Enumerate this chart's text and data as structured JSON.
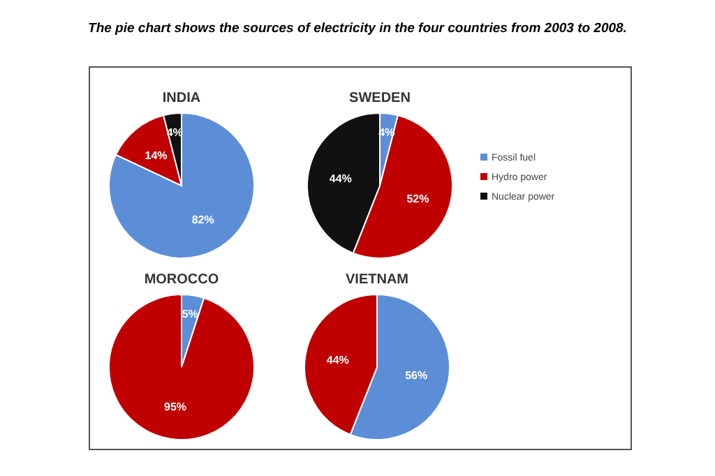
{
  "chart_data": [
    {
      "type": "other",
      "title": "The pie chart shows the sources of electricity in the four countries from 2003 to 2008."
    },
    {
      "type": "pie",
      "title": "INDIA",
      "categories": [
        null,
        null,
        null
      ],
      "values": [
        82,
        14,
        4
      ],
      "value_labels": [
        "82%",
        "14%",
        "4%"
      ],
      "colors": [
        "#5b8ed6",
        "#c00000",
        "#111111"
      ],
      "legend": false
    },
    {
      "type": "pie",
      "title": "SWEDEN",
      "categories": [
        "Fossil fuel",
        "Hydro power",
        "Nuclear power"
      ],
      "values": [
        4,
        52,
        44
      ],
      "value_labels": [
        "4%",
        "52%",
        "44%"
      ],
      "colors": [
        "#5b8ed6",
        "#c00000",
        "#111111"
      ],
      "legend": "right"
    },
    {
      "type": "pie",
      "title": "MOROCCO",
      "categories": [
        null,
        null
      ],
      "values": [
        5,
        95
      ],
      "value_labels": [
        "5%",
        "95%"
      ],
      "colors": [
        "#5b8ed6",
        "#c00000"
      ],
      "legend": false
    },
    {
      "type": "pie",
      "title": "VIETNAM",
      "categories": [
        null,
        null
      ],
      "values": [
        56,
        44
      ],
      "value_labels": [
        "56%",
        "44%"
      ],
      "colors": [
        "#5b8ed6",
        "#c00000"
      ],
      "legend": false
    }
  ]
}
